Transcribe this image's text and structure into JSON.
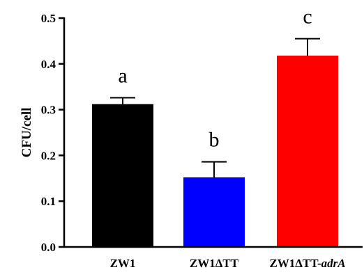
{
  "chart_data": {
    "type": "bar",
    "categories": [
      "ZW1",
      "ZW1ΔTT",
      "ZW1ΔTT-adrA"
    ],
    "category_labels": [
      {
        "main": "ZW1",
        "italic": ""
      },
      {
        "main": "ZW1ΔTT",
        "italic": ""
      },
      {
        "main": "ZW1ΔTT-",
        "italic": "adrA"
      }
    ],
    "values": [
      0.312,
      0.152,
      0.418
    ],
    "error_plus": [
      0.014,
      0.034,
      0.037
    ],
    "significance_letters": [
      "a",
      "b",
      "c"
    ],
    "colors": [
      "#000000",
      "#0000ff",
      "#ff0000"
    ],
    "ylabel": "CFU/cell",
    "xlabel": "",
    "title": "",
    "ylim": [
      0,
      0.5
    ],
    "yticks": [
      0.0,
      0.1,
      0.2,
      0.3,
      0.4,
      0.5
    ],
    "ytick_labels": [
      "0.0",
      "0.1",
      "0.2",
      "0.3",
      "0.4",
      "0.5"
    ],
    "grid": false,
    "legend": "none"
  }
}
